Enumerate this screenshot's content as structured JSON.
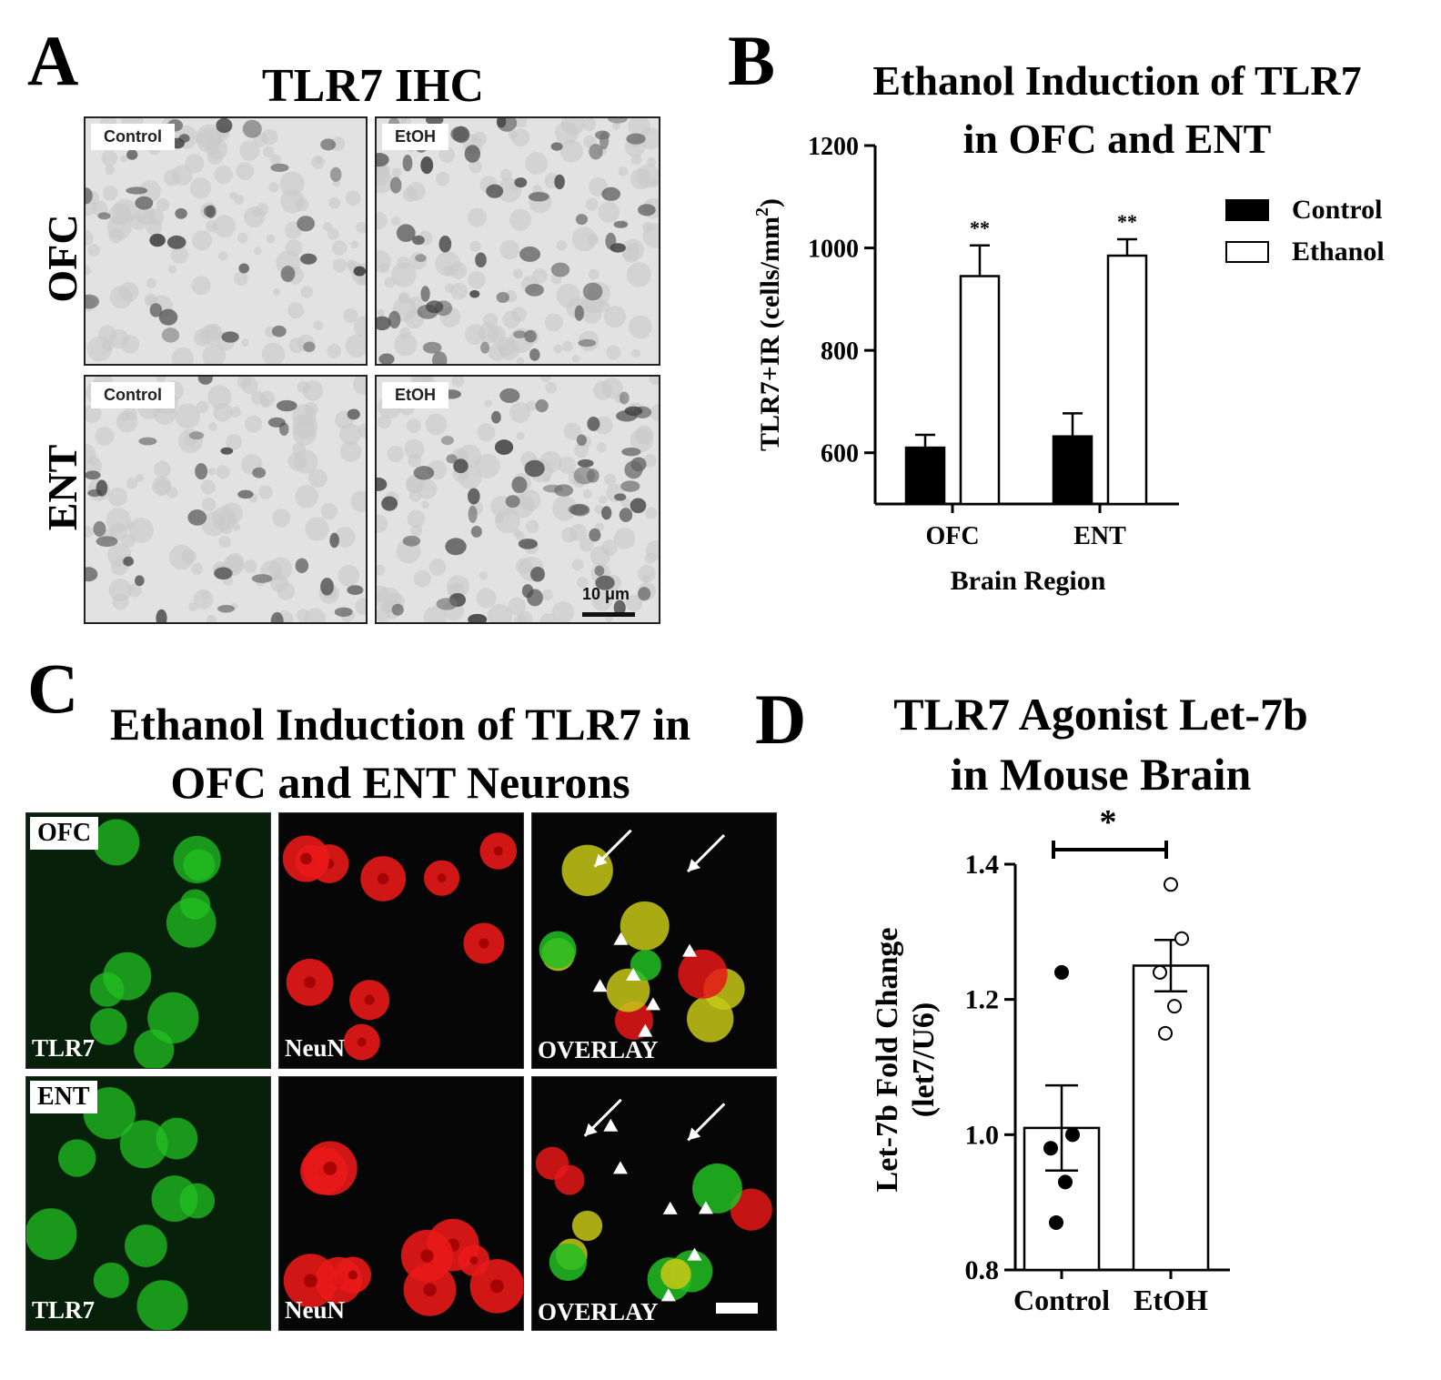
{
  "panelA": {
    "letter": "A",
    "title": "TLR7 IHC",
    "rows": [
      "OFC",
      "ENT"
    ],
    "tiles": [
      {
        "label": "Control"
      },
      {
        "label": "EtOH"
      },
      {
        "label": "Control"
      },
      {
        "label": "EtOH"
      }
    ],
    "scalebar": "10 μm"
  },
  "panelC": {
    "letter": "C",
    "title_line1": "Ethanol Induction of TLR7 in",
    "title_line2": "OFC and ENT Neurons",
    "row_tags": [
      "OFC",
      "ENT"
    ],
    "channels": [
      "TLR7",
      "NeuN",
      "OVERLAY"
    ],
    "colors": {
      "tlr7": "#22c022",
      "neun": "#e81818",
      "overlay": "#c8c818"
    }
  },
  "chart_data": [
    {
      "panel": "B",
      "type": "bar",
      "title_line1": "Ethanol Induction of TLR7",
      "title_line2": "in OFC and ENT",
      "xlabel": "Brain Region",
      "ylabel": "TLR7+IR (cells/mm",
      "ylabel_sup": "2",
      "ylabel_end": ")",
      "categories": [
        "OFC",
        "ENT"
      ],
      "series": [
        {
          "name": "Control",
          "values": [
            610,
            632
          ],
          "errors": [
            25,
            45
          ],
          "color": "#000000"
        },
        {
          "name": "Ethanol",
          "values": [
            945,
            985
          ],
          "errors": [
            60,
            32
          ],
          "color": "#ffffff"
        }
      ],
      "significance": [
        "**",
        "**"
      ],
      "ylim": [
        500,
        1200
      ],
      "yticks": [
        600,
        800,
        1000,
        1200
      ],
      "legend": "top-right"
    },
    {
      "panel": "D",
      "type": "bar",
      "title_line1": "TLR7 Agonist Let-7b",
      "title_line2": "in Mouse Brain",
      "ylabel_line1": "Let-7b Fold Change",
      "ylabel_line2": "(let7/U6)",
      "categories": [
        "Control",
        "EtOH"
      ],
      "values": [
        1.01,
        1.25
      ],
      "sem": [
        0.063,
        0.038
      ],
      "points": [
        [
          1.24,
          1.0,
          0.98,
          0.93,
          0.87
        ],
        [
          1.37,
          1.29,
          1.24,
          1.19,
          1.15
        ]
      ],
      "significance": "*",
      "ylim": [
        0.8,
        1.4
      ],
      "yticks": [
        "0.8",
        "1.0",
        "1.2",
        "1.4"
      ]
    }
  ]
}
